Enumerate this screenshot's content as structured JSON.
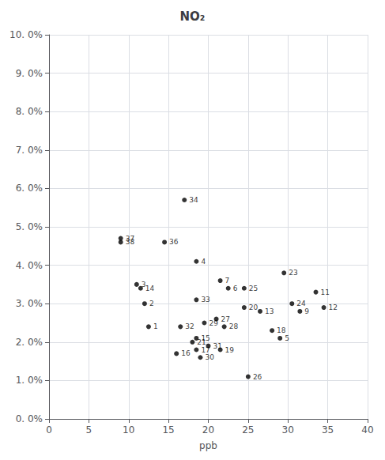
{
  "chart_data": {
    "type": "scatter",
    "title": "NO₂",
    "xlabel": "ppb",
    "x": [
      12.5,
      12.0,
      11.0,
      18.5,
      29.0,
      22.5,
      21.5,
      31.5,
      33.5,
      34.5,
      26.5,
      11.5,
      18.5,
      16.0,
      18.5,
      28.0,
      21.5,
      24.5,
      18.0,
      29.5,
      30.5,
      24.5,
      25.0,
      21.0,
      22.0,
      19.5,
      19.0,
      20.0,
      16.5,
      18.5,
      17.0,
      14.5,
      9.0,
      9.0
    ],
    "values": [
      0.024,
      0.03,
      0.035,
      0.041,
      0.021,
      0.034,
      0.036,
      0.028,
      0.033,
      0.029,
      0.028,
      0.034,
      0.021,
      0.017,
      0.018,
      0.023,
      0.018,
      0.029,
      0.02,
      0.038,
      0.03,
      0.034,
      0.011,
      0.026,
      0.024,
      0.025,
      0.016,
      0.019,
      0.024,
      0.031,
      0.057,
      0.046,
      0.047,
      0.046
    ],
    "labels": [
      "1",
      "2",
      "3",
      "4",
      "5",
      "6",
      "7",
      "9",
      "11",
      "12",
      "13",
      "14",
      "15",
      "16",
      "17",
      "18",
      "19",
      "20",
      "21",
      "23",
      "24",
      "25",
      "26",
      "27",
      "28",
      "29",
      "30",
      "31",
      "32",
      "33",
      "34",
      "36",
      "37",
      "38"
    ],
    "color": "#000000",
    "xlim": [
      0,
      40
    ],
    "xticks": [
      0,
      5,
      10,
      15,
      20,
      25,
      30,
      35,
      40
    ],
    "ylim": [
      0.0,
      0.1
    ],
    "yticks": [
      {
        "value": 0.0,
        "label": "0. 0%"
      },
      {
        "value": 0.01,
        "label": "1. 0%"
      },
      {
        "value": 0.02,
        "label": "2. 0%"
      },
      {
        "value": 0.03,
        "label": "3. 0%"
      },
      {
        "value": 0.04,
        "label": "4. 0%"
      },
      {
        "value": 0.05,
        "label": "5. 0%"
      },
      {
        "value": 0.06,
        "label": "6. 0%"
      },
      {
        "value": 0.07,
        "label": "7. 0%"
      },
      {
        "value": 0.08,
        "label": "8. 0%"
      },
      {
        "value": 0.09,
        "label": "9. 0%"
      },
      {
        "value": 0.1,
        "label": "10. 0%"
      }
    ],
    "grid": true
  }
}
